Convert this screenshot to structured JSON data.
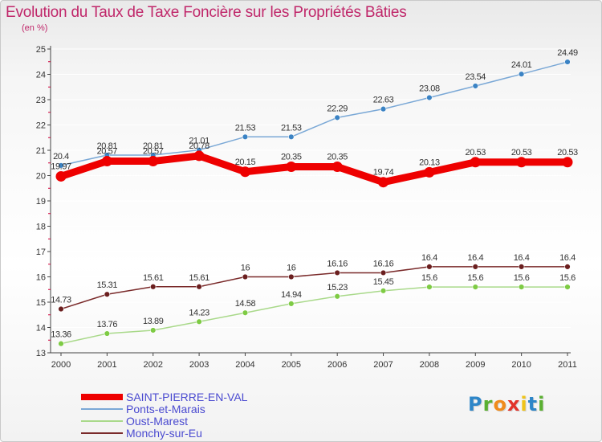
{
  "title": "Evolution du Taux de Taxe Foncière sur les Propriétés Bâties",
  "subtitle": "(en %)",
  "logo": {
    "text": "Proxiti",
    "letters": [
      "P",
      "r",
      "o",
      "x",
      "i",
      "t",
      "i"
    ],
    "colors": [
      "#2e86c8",
      "#5ab031",
      "#f08b1c",
      "#e2332a",
      "#f0c419",
      "#2e86c8",
      "#5ab031"
    ]
  },
  "colors": {
    "title": "#c0276a",
    "axis": "#444444",
    "gridline": "#ffffff"
  },
  "chart_data": {
    "type": "line",
    "title": "Evolution du Taux de Taxe Foncière sur les Propriétés Bâties",
    "ylabel": "(en %)",
    "xlabel": "",
    "x": [
      "2000",
      "2001",
      "2002",
      "2003",
      "2004",
      "2005",
      "2006",
      "2007",
      "2008",
      "2009",
      "2010",
      "2011"
    ],
    "ylim": [
      13,
      25
    ],
    "yticks": [
      "13",
      "14",
      "15",
      "16",
      "17",
      "18",
      "19",
      "20",
      "21",
      "22",
      "23",
      "24",
      "25"
    ],
    "legend_position": "bottom-left",
    "series": [
      {
        "name": "SAINT-PIERRE-EN-VAL",
        "color": "#ee0000",
        "label_color": "#333333",
        "emphasis": "thick",
        "values": [
          19.97,
          20.57,
          20.57,
          20.78,
          20.15,
          20.35,
          20.35,
          19.74,
          20.13,
          20.53,
          20.53,
          20.53
        ],
        "labels": [
          "19.97",
          "20.57",
          "20.57",
          "20.78",
          "20.15",
          "20.35",
          "20.35",
          "19.74",
          "20.13",
          "20.53",
          "20.53",
          "20.53"
        ]
      },
      {
        "name": "Ponts-et-Marais",
        "color": "#7aa8d6",
        "marker_color": "#3b83c4",
        "label_color": "#333333",
        "emphasis": "normal",
        "values": [
          20.4,
          20.81,
          20.81,
          21.01,
          21.53,
          21.53,
          22.29,
          22.63,
          23.08,
          23.54,
          24.01,
          24.49
        ],
        "labels": [
          "20.4",
          "20.81",
          "20.81",
          "21.01",
          "21.53",
          "21.53",
          "22.29",
          "22.63",
          "23.08",
          "23.54",
          "24.01",
          "24.49"
        ]
      },
      {
        "name": "Oust-Marest",
        "color": "#a9d98a",
        "marker_color": "#7ecb44",
        "label_color": "#333333",
        "emphasis": "normal",
        "values": [
          13.36,
          13.76,
          13.89,
          14.23,
          14.58,
          14.94,
          15.23,
          15.45,
          15.6,
          15.6,
          15.6,
          15.6
        ],
        "labels": [
          "13.36",
          "13.76",
          "13.89",
          "14.23",
          "14.58",
          "14.94",
          "15.23",
          "15.45",
          "15.6",
          "15.6",
          "15.6",
          "15.6"
        ]
      },
      {
        "name": "Monchy-sur-Eu",
        "color": "#7a2a2a",
        "marker_color": "#6b1f1f",
        "label_color": "#333333",
        "emphasis": "normal",
        "values": [
          14.73,
          15.31,
          15.61,
          15.61,
          16,
          16,
          16.16,
          16.16,
          16.4,
          16.4,
          16.4,
          16.4
        ],
        "labels": [
          "14.73",
          "15.31",
          "15.61",
          "15.61",
          "16",
          "16",
          "16.16",
          "16.16",
          "16.4",
          "16.4",
          "16.4",
          "16.4"
        ]
      }
    ]
  }
}
